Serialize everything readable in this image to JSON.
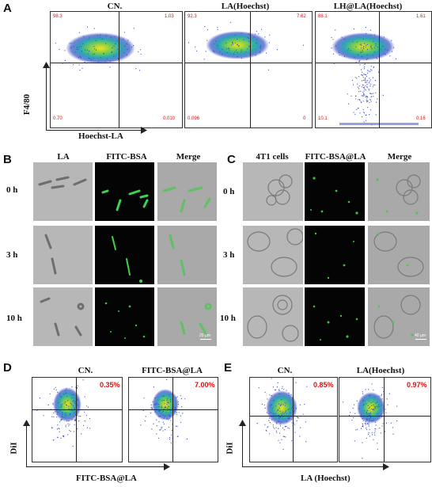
{
  "panel_a": {
    "label": "A",
    "plots": [
      {
        "title": "CN.",
        "q_ul": "98.3",
        "q_ur": "1.03",
        "q_ll": "0.70",
        "q_lr": "0.010"
      },
      {
        "title": "LA(Hoechst)",
        "q_ul": "92.3",
        "q_ur": "7.62",
        "q_ll": "0.096",
        "q_lr": "0"
      },
      {
        "title": "LH@LA(Hoechst)",
        "q_ul": "88.1",
        "q_ur": "1.61",
        "q_ll": "10.1",
        "q_lr": "0.16"
      }
    ],
    "ylabel": "F4/80",
    "xlabel": "Hoechst-LA"
  },
  "panel_b": {
    "label": "B",
    "columns": [
      "LA",
      "FITC-BSA",
      "Merge"
    ],
    "rows": [
      "0 h",
      "3 h",
      "10 h"
    ],
    "scale_bar": "25 μm"
  },
  "panel_c": {
    "label": "C",
    "columns": [
      "4T1 cells",
      "FITC-BSA@LA",
      "Merge"
    ],
    "rows": [
      "0 h",
      "3 h",
      "10 h"
    ],
    "scale_bar": "40 μm"
  },
  "panel_d": {
    "label": "D",
    "plots": [
      {
        "title": "CN.",
        "value": "0.35%"
      },
      {
        "title": "FITC-BSA@LA",
        "value": "7.00%"
      }
    ],
    "ylabel": "DiI",
    "xlabel": "FITC-BSA@LA"
  },
  "panel_e": {
    "label": "E",
    "plots": [
      {
        "title": "CN.",
        "value": "0.85%"
      },
      {
        "title": "LA(Hoechst)",
        "value": "0.97%"
      }
    ],
    "ylabel": "DiI",
    "xlabel": "LA (Hoechst)"
  }
}
